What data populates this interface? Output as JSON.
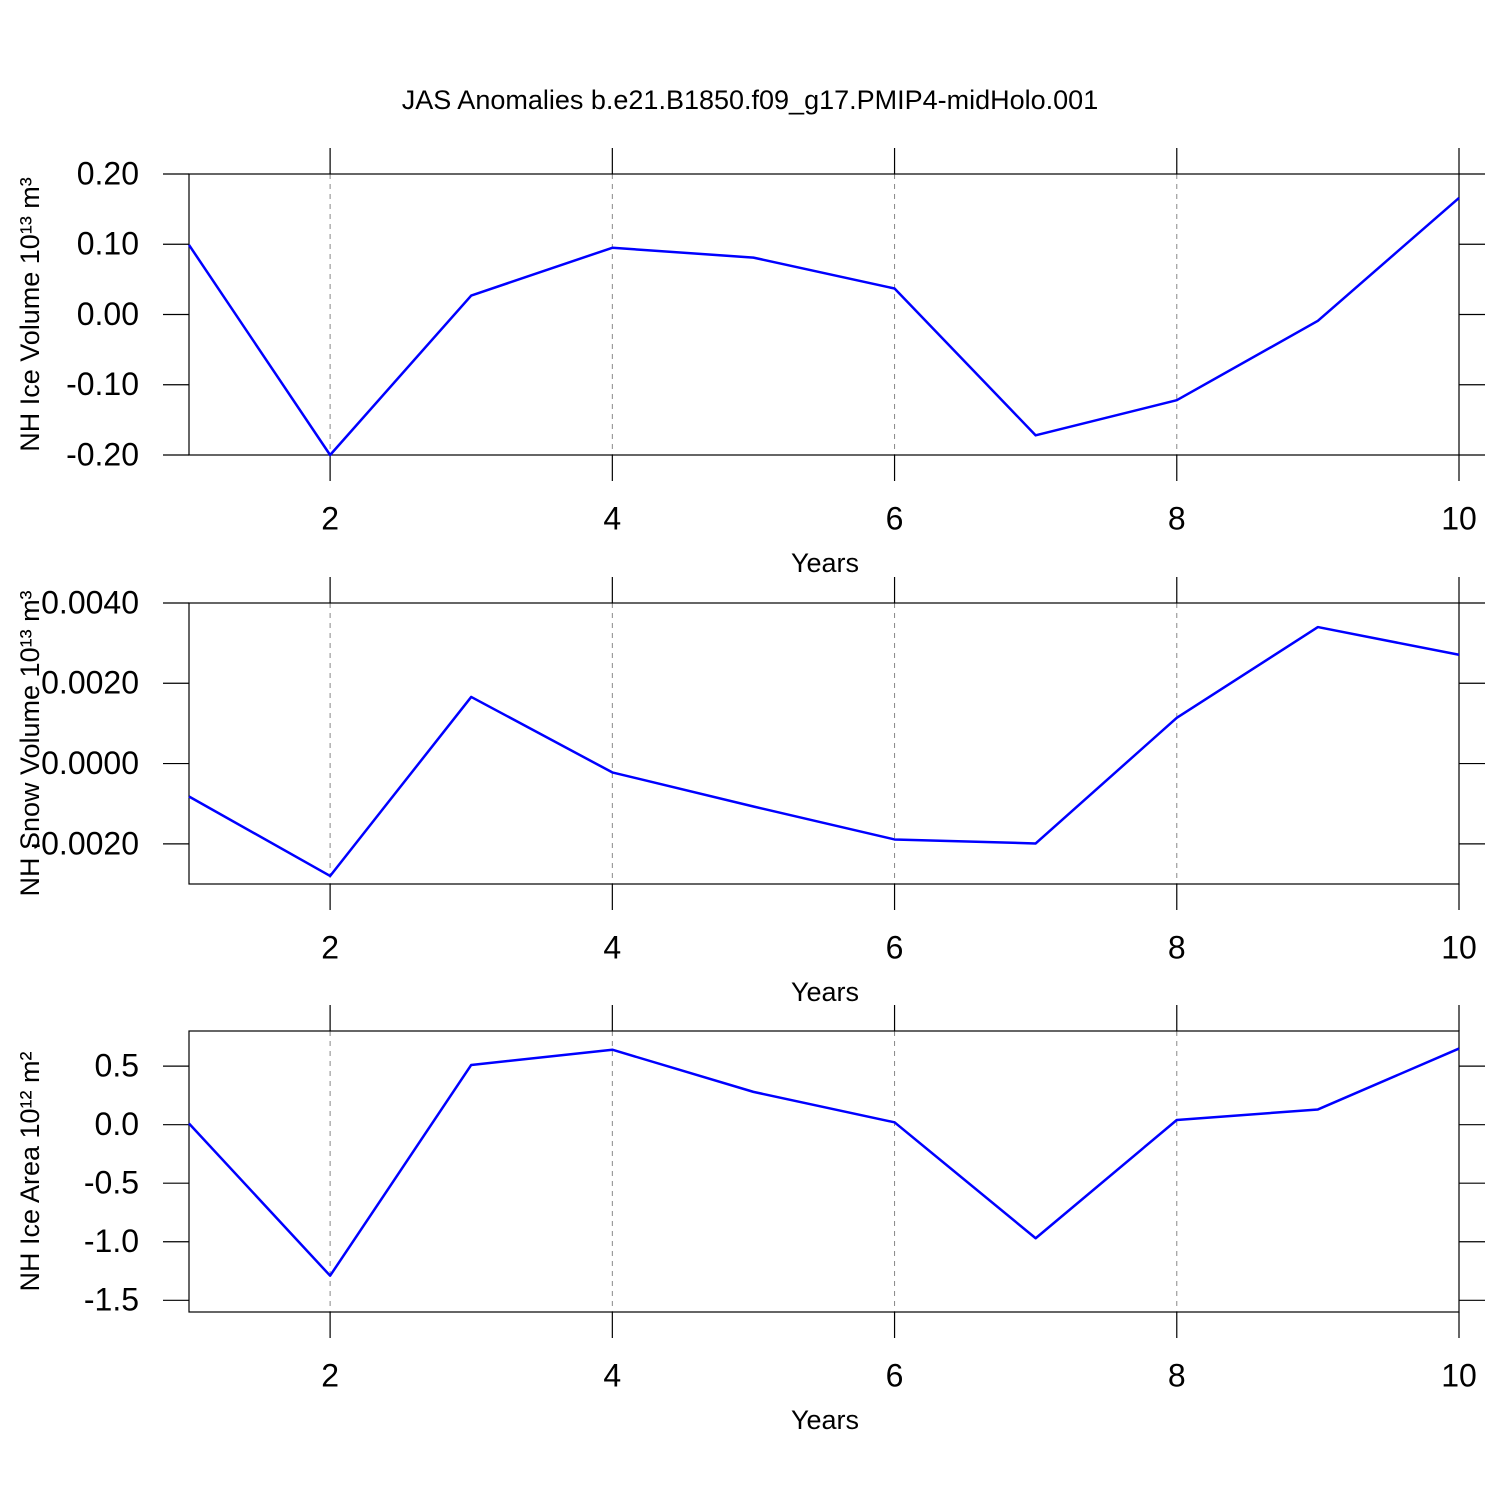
{
  "chart_data": [
    {
      "type": "line",
      "title": "JAS Anomalies b.e21.B1850.f09_g17.PMIP4-midHolo.001",
      "xlabel": "Years",
      "ylabel": "NH Ice Volume 10¹³ m³",
      "x": [
        1,
        2,
        3,
        4,
        5,
        6,
        7,
        8,
        9,
        10
      ],
      "series": [
        {
          "color": "#0000ff",
          "values": [
            0.099,
            -0.2,
            0.027,
            0.095,
            0.081,
            0.037,
            -0.172,
            -0.122,
            -0.009,
            0.166
          ]
        }
      ],
      "xlim": [
        1,
        10
      ],
      "xticks": [
        2,
        4,
        6,
        8,
        10
      ],
      "ylim": [
        -0.2,
        0.2
      ],
      "yticks": [
        {
          "value": -0.2,
          "label": "-0.20"
        },
        {
          "value": -0.1,
          "label": "-0.10"
        },
        {
          "value": 0,
          "label": "0.00"
        },
        {
          "value": 0.1,
          "label": "0.10"
        },
        {
          "value": 0.2,
          "label": "0.20"
        }
      ],
      "grid": "x"
    },
    {
      "type": "line",
      "xlabel": "Years",
      "ylabel": "NH Snow Volume 10¹³ m³",
      "x": [
        1,
        2,
        3,
        4,
        5,
        6,
        7,
        8,
        9,
        10
      ],
      "series": [
        {
          "color": "#0000ff",
          "values": [
            -0.00082,
            -0.0028,
            0.00166,
            -0.00022,
            -0.00107,
            -0.00189,
            -0.00199,
            0.00114,
            0.0034,
            0.00271
          ]
        }
      ],
      "xlim": [
        1,
        10
      ],
      "xticks": [
        2,
        4,
        6,
        8,
        10
      ],
      "ylim": [
        -0.003,
        0.004
      ],
      "yticks": [
        {
          "value": -0.002,
          "label": "-0.0020"
        },
        {
          "value": 0,
          "label": "0.0000"
        },
        {
          "value": 0.002,
          "label": "0.0020"
        },
        {
          "value": 0.004,
          "label": "0.0040"
        }
      ],
      "grid": "x"
    },
    {
      "type": "line",
      "xlabel": "Years",
      "ylabel": "NH Ice Area 10¹² m²",
      "x": [
        1,
        2,
        3,
        4,
        5,
        6,
        7,
        8,
        9,
        10
      ],
      "series": [
        {
          "color": "#0000ff",
          "values": [
            0.01,
            -1.29,
            0.51,
            0.64,
            0.28,
            0.02,
            -0.97,
            0.04,
            0.13,
            0.65
          ]
        }
      ],
      "xlim": [
        1,
        10
      ],
      "xticks": [
        2,
        4,
        6,
        8,
        10
      ],
      "ylim": [
        -1.6,
        0.8
      ],
      "yticks": [
        {
          "value": -1.5,
          "label": "-1.5"
        },
        {
          "value": -1,
          "label": "-1.0"
        },
        -0.5,
        {
          "value": 0,
          "label": "0.0"
        },
        0.5
      ],
      "grid": "x"
    }
  ]
}
